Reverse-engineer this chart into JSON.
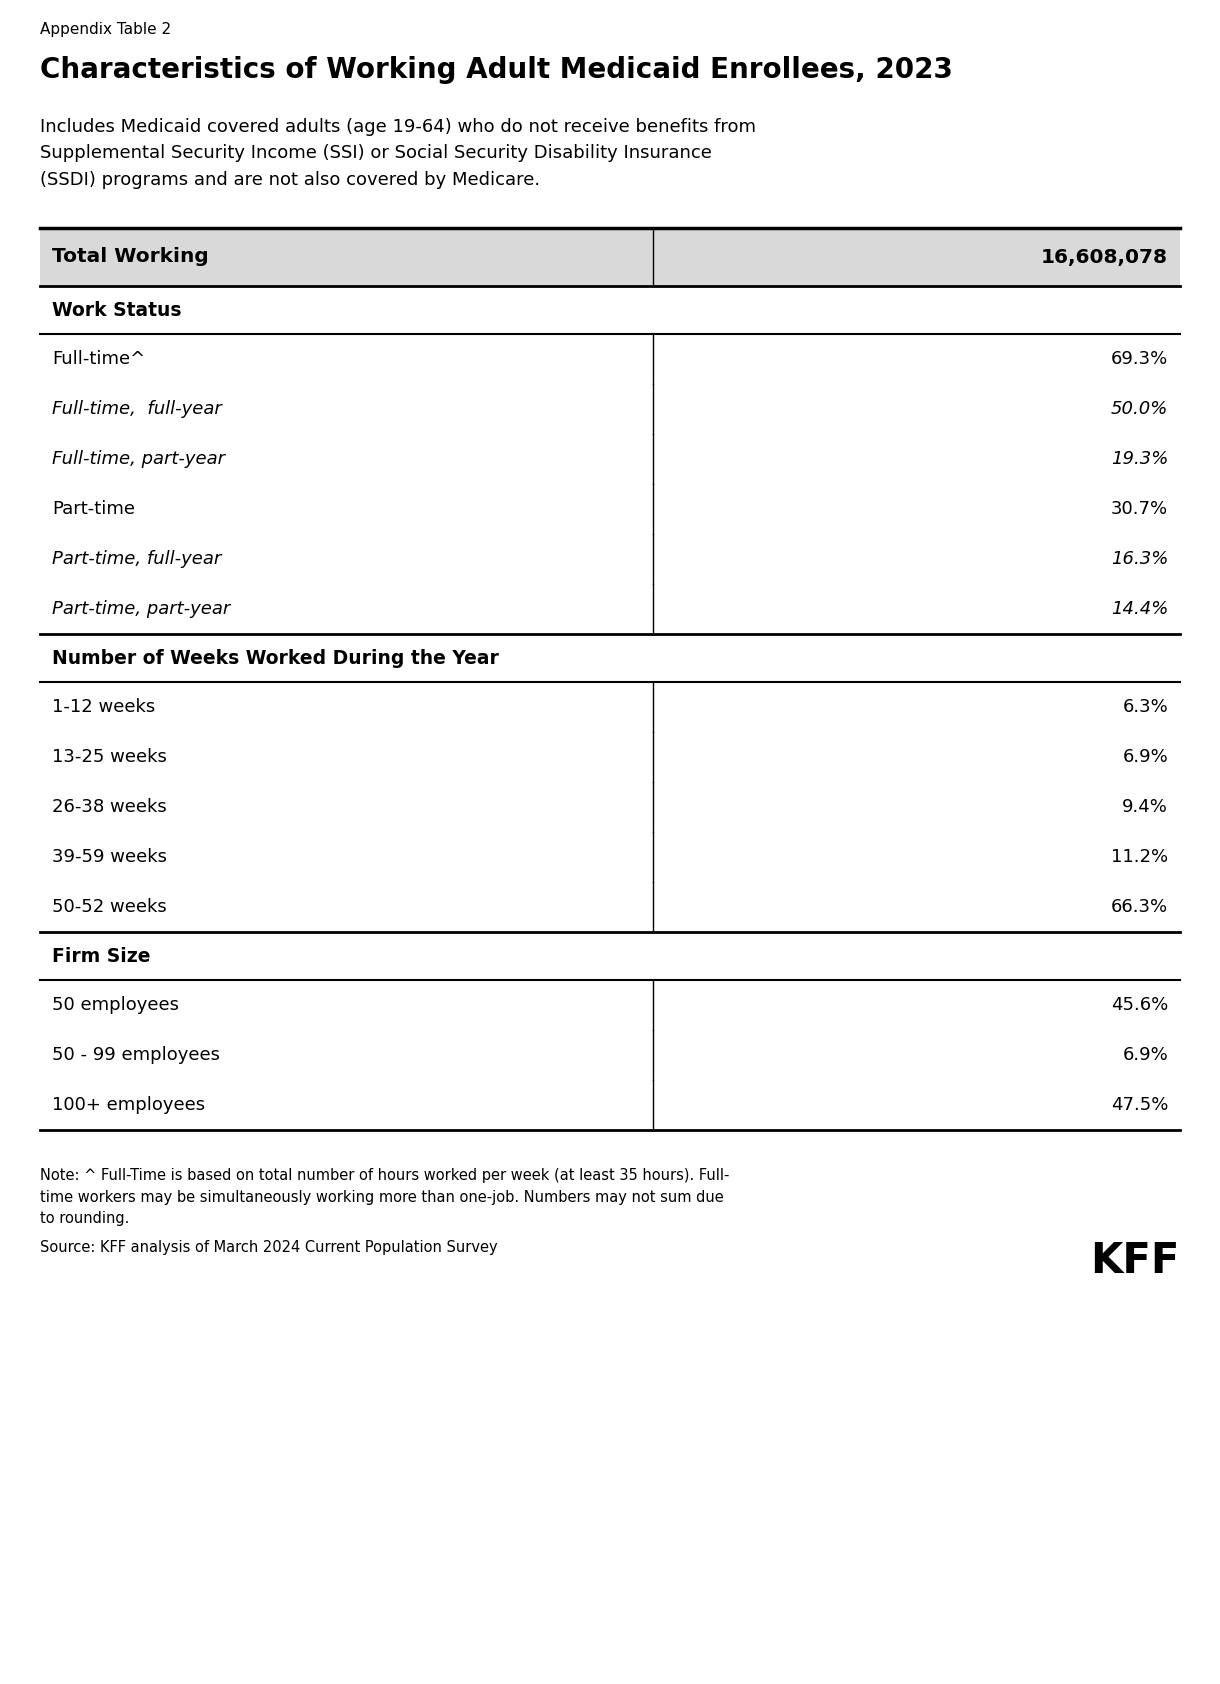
{
  "appendix_label": "Appendix Table 2",
  "title": "Characteristics of Working Adult Medicaid Enrollees, 2023",
  "subtitle": "Includes Medicaid covered adults (age 19-64) who do not receive benefits from\nSupplemental Security Income (SSI) or Social Security Disability Insurance\n(SSDI) programs and are not also covered by Medicare.",
  "total_label": "Total Working",
  "total_value": "16,608,078",
  "sections": [
    {
      "header": "Work Status",
      "rows": [
        {
          "label": "Full-time^",
          "value": "69.3%",
          "italic": false
        },
        {
          "label": "Full-time,  full-year",
          "value": "50.0%",
          "italic": true
        },
        {
          "label": "Full-time, part-year",
          "value": "19.3%",
          "italic": true
        },
        {
          "label": "Part-time",
          "value": "30.7%",
          "italic": false
        },
        {
          "label": "Part-time, full-year",
          "value": "16.3%",
          "italic": true
        },
        {
          "label": "Part-time, part-year",
          "value": "14.4%",
          "italic": true
        }
      ]
    },
    {
      "header": "Number of Weeks Worked During the Year",
      "rows": [
        {
          "label": "1-12 weeks",
          "value": "6.3%",
          "italic": false
        },
        {
          "label": "13-25 weeks",
          "value": "6.9%",
          "italic": false
        },
        {
          "label": "26-38 weeks",
          "value": "9.4%",
          "italic": false
        },
        {
          "label": "39-59 weeks",
          "value": "11.2%",
          "italic": false
        },
        {
          "label": "50-52 weeks",
          "value": "66.3%",
          "italic": false
        }
      ]
    },
    {
      "header": "Firm Size",
      "rows": [
        {
          "label": "50 employees",
          "value": "45.6%",
          "italic": false
        },
        {
          "label": "50 - 99 employees",
          "value": "6.9%",
          "italic": false
        },
        {
          "label": "100+ employees",
          "value": "47.5%",
          "italic": false
        }
      ]
    }
  ],
  "note": "Note: ^ Full-Time is based on total number of hours worked per week (at least 35 hours). Full-\ntime workers may be simultaneously working more than one-job. Numbers may not sum due\nto rounding.",
  "source": "Source: KFF analysis of March 2024 Current Population Survey",
  "kff_logo": "KFF",
  "bg_color": "#ffffff",
  "header_bg_color": "#d9d9d9",
  "divider_color": "#000000",
  "text_color": "#000000",
  "col_split": 0.535
}
